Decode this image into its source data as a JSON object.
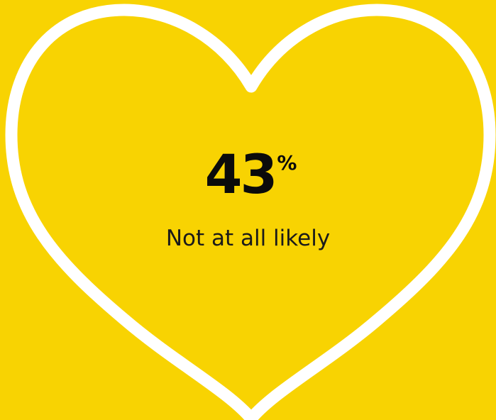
{
  "colors": {
    "background": "#f8d302",
    "heart_outline": "#ffffff",
    "text": "#0b0b0b"
  },
  "stat": {
    "value": "43",
    "unit": "%",
    "label": "Not at all likely"
  },
  "icon": "heart-outline-icon"
}
